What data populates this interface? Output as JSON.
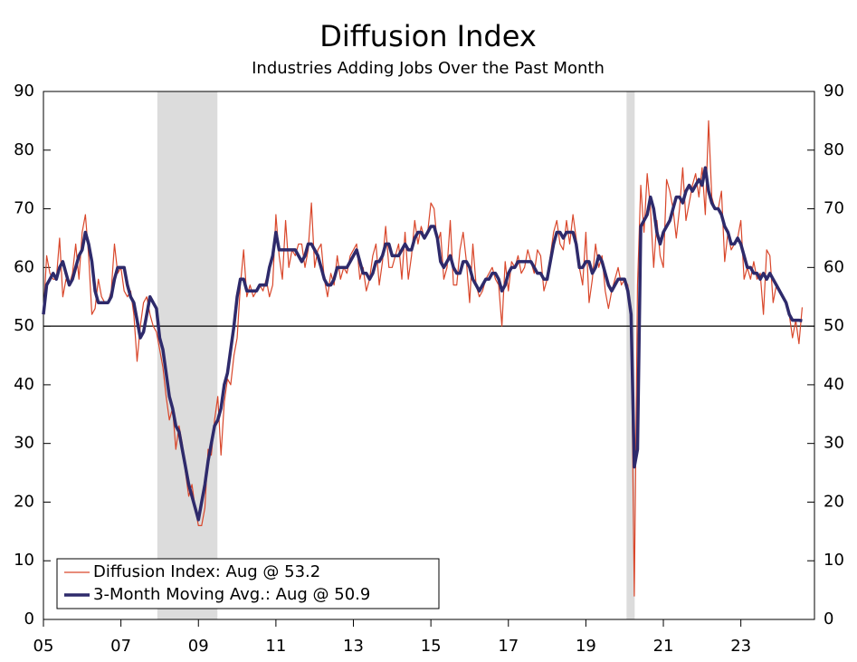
{
  "chart_data": {
    "type": "line",
    "title": "Diffusion Index",
    "subtitle": "Industries Adding Jobs Over the Past Month",
    "x": [
      2005,
      2005.083,
      2005.167,
      2005.25,
      2005.333,
      2005.417,
      2005.5,
      2005.583,
      2005.667,
      2005.75,
      2005.833,
      2005.917,
      2006,
      2006.083,
      2006.167,
      2006.25,
      2006.333,
      2006.417,
      2006.5,
      2006.583,
      2006.667,
      2006.75,
      2006.833,
      2006.917,
      2007,
      2007.083,
      2007.167,
      2007.25,
      2007.333,
      2007.417,
      2007.5,
      2007.583,
      2007.667,
      2007.75,
      2007.833,
      2007.917,
      2008,
      2008.083,
      2008.167,
      2008.25,
      2008.333,
      2008.417,
      2008.5,
      2008.583,
      2008.667,
      2008.75,
      2008.833,
      2008.917,
      2009,
      2009.083,
      2009.167,
      2009.25,
      2009.333,
      2009.417,
      2009.5,
      2009.583,
      2009.667,
      2009.75,
      2009.833,
      2009.917,
      2010,
      2010.083,
      2010.167,
      2010.25,
      2010.333,
      2010.417,
      2010.5,
      2010.583,
      2010.667,
      2010.75,
      2010.833,
      2010.917,
      2011,
      2011.083,
      2011.167,
      2011.25,
      2011.333,
      2011.417,
      2011.5,
      2011.583,
      2011.667,
      2011.75,
      2011.833,
      2011.917,
      2012,
      2012.083,
      2012.167,
      2012.25,
      2012.333,
      2012.417,
      2012.5,
      2012.583,
      2012.667,
      2012.75,
      2012.833,
      2012.917,
      2013,
      2013.083,
      2013.167,
      2013.25,
      2013.333,
      2013.417,
      2013.5,
      2013.583,
      2013.667,
      2013.75,
      2013.833,
      2013.917,
      2014,
      2014.083,
      2014.167,
      2014.25,
      2014.333,
      2014.417,
      2014.5,
      2014.583,
      2014.667,
      2014.75,
      2014.833,
      2014.917,
      2015,
      2015.083,
      2015.167,
      2015.25,
      2015.333,
      2015.417,
      2015.5,
      2015.583,
      2015.667,
      2015.75,
      2015.833,
      2015.917,
      2016,
      2016.083,
      2016.167,
      2016.25,
      2016.333,
      2016.417,
      2016.5,
      2016.583,
      2016.667,
      2016.75,
      2016.833,
      2016.917,
      2017,
      2017.083,
      2017.167,
      2017.25,
      2017.333,
      2017.417,
      2017.5,
      2017.583,
      2017.667,
      2017.75,
      2017.833,
      2017.917,
      2018,
      2018.083,
      2018.167,
      2018.25,
      2018.333,
      2018.417,
      2018.5,
      2018.583,
      2018.667,
      2018.75,
      2018.833,
      2018.917,
      2019,
      2019.083,
      2019.167,
      2019.25,
      2019.333,
      2019.417,
      2019.5,
      2019.583,
      2019.667,
      2019.75,
      2019.833,
      2019.917,
      2020,
      2020.083,
      2020.167,
      2020.25,
      2020.333,
      2020.417,
      2020.5,
      2020.583,
      2020.667,
      2020.75,
      2020.833,
      2020.917,
      2021,
      2021.083,
      2021.167,
      2021.25,
      2021.333,
      2021.417,
      2021.5,
      2021.583,
      2021.667,
      2021.75,
      2021.833,
      2021.917,
      2022,
      2022.083,
      2022.167,
      2022.25,
      2022.333,
      2022.417,
      2022.5,
      2022.583,
      2022.667,
      2022.75,
      2022.833,
      2022.917,
      2023,
      2023.083,
      2023.167,
      2023.25,
      2023.333,
      2023.417,
      2023.5,
      2023.583,
      2023.667,
      2023.75,
      2023.833,
      2023.917,
      2024,
      2024.083,
      2024.167,
      2024.25,
      2024.333,
      2024.417,
      2024.5,
      2024.583
    ],
    "series": [
      {
        "name": "Diffusion Index: Aug @ 53.2",
        "color": "#d9472b",
        "width": 1.2,
        "values": [
          52,
          62,
          59,
          58,
          58,
          65,
          55,
          58,
          57,
          59,
          64,
          58,
          66,
          69,
          62,
          52,
          53,
          58,
          55,
          54,
          54,
          56,
          64,
          59,
          60,
          56,
          55,
          56,
          52,
          44,
          50,
          54,
          55,
          52,
          50,
          49,
          46,
          43,
          38,
          34,
          36,
          29,
          33,
          30,
          25,
          21,
          23,
          19,
          16,
          16,
          19,
          29,
          28,
          34,
          38,
          28,
          37,
          41,
          40,
          45,
          48,
          57,
          63,
          55,
          57,
          55,
          56,
          57,
          56,
          58,
          55,
          57,
          69,
          62,
          58,
          68,
          60,
          63,
          62,
          64,
          64,
          60,
          63,
          71,
          60,
          63,
          64,
          58,
          55,
          59,
          57,
          62,
          58,
          60,
          59,
          62,
          63,
          64,
          58,
          60,
          56,
          58,
          62,
          64,
          57,
          61,
          67,
          60,
          60,
          62,
          64,
          58,
          66,
          58,
          62,
          68,
          64,
          67,
          65,
          66,
          71,
          70,
          64,
          66,
          58,
          60,
          68,
          57,
          57,
          63,
          66,
          61,
          54,
          64,
          57,
          55,
          56,
          58,
          59,
          60,
          58,
          57,
          50,
          61,
          56,
          61,
          60,
          62,
          59,
          60,
          63,
          61,
          59,
          63,
          62,
          56,
          58,
          62,
          66,
          68,
          64,
          63,
          68,
          64,
          69,
          65,
          60,
          57,
          66,
          54,
          58,
          64,
          60,
          62,
          56,
          53,
          56,
          58,
          60,
          57,
          58,
          57,
          52,
          4,
          57,
          74,
          66,
          76,
          70,
          60,
          68,
          62,
          60,
          75,
          73,
          70,
          65,
          70,
          77,
          68,
          71,
          74,
          76,
          72,
          77,
          69,
          85,
          72,
          70,
          70,
          73,
          61,
          66,
          63,
          64,
          65,
          68,
          58,
          60,
          58,
          61,
          58,
          59,
          52,
          63,
          62,
          54,
          57,
          56,
          55,
          54,
          52,
          48,
          51,
          47,
          53.2
        ]
      },
      {
        "name": "3-Month Moving Avg.: Aug @ 50.9",
        "color": "#2e2a6b",
        "width": 3.5,
        "values": [
          52,
          57,
          58,
          59,
          58,
          60,
          61,
          59,
          57,
          58,
          60,
          62,
          63,
          66,
          64,
          61,
          56,
          54,
          54,
          54,
          54,
          55,
          58,
          60,
          60,
          60,
          57,
          55,
          54,
          51,
          48,
          49,
          52,
          55,
          54,
          53,
          48,
          46,
          42,
          38,
          36,
          33,
          32,
          29,
          26,
          23,
          21,
          19,
          17,
          20,
          23,
          27,
          30,
          33,
          34,
          36,
          40,
          42,
          46,
          50,
          55,
          58,
          58,
          56,
          56,
          56,
          56,
          57,
          57,
          57,
          60,
          62,
          66,
          63,
          63,
          63,
          63,
          63,
          63,
          62,
          61,
          62,
          64,
          64,
          63,
          62,
          60,
          58,
          57,
          57,
          58,
          60,
          60,
          60,
          60,
          61,
          62,
          63,
          61,
          59,
          59,
          58,
          59,
          61,
          61,
          62,
          64,
          64,
          62,
          62,
          62,
          63,
          64,
          63,
          63,
          65,
          66,
          66,
          65,
          66,
          67,
          67,
          65,
          61,
          60,
          61,
          62,
          60,
          59,
          59,
          61,
          61,
          60,
          58,
          57,
          56,
          57,
          58,
          58,
          59,
          59,
          58,
          56,
          57,
          59,
          60,
          60,
          61,
          61,
          61,
          61,
          61,
          60,
          59,
          59,
          58,
          58,
          61,
          64,
          66,
          66,
          65,
          66,
          66,
          66,
          64,
          60,
          60,
          61,
          61,
          59,
          60,
          62,
          61,
          59,
          57,
          56,
          57,
          58,
          58,
          58,
          56,
          52,
          26,
          29,
          67,
          68,
          69,
          72,
          70,
          66,
          64,
          66,
          67,
          68,
          70,
          72,
          72,
          71,
          73,
          74,
          73,
          74,
          75,
          74,
          77,
          73,
          71,
          70,
          70,
          69,
          67,
          66,
          64,
          64,
          65,
          64,
          62,
          60,
          60,
          59,
          59,
          58,
          59,
          58,
          59,
          58,
          57,
          56,
          55,
          54,
          52,
          51,
          51,
          51,
          50.9
        ]
      }
    ],
    "xlim": [
      2005,
      2024.9
    ],
    "ylim": [
      0,
      90
    ],
    "xticks": [
      {
        "value": 2005,
        "label": "05"
      },
      {
        "value": 2007,
        "label": "07"
      },
      {
        "value": 2009,
        "label": "09"
      },
      {
        "value": 2011,
        "label": "11"
      },
      {
        "value": 2013,
        "label": "13"
      },
      {
        "value": 2015,
        "label": "15"
      },
      {
        "value": 2017,
        "label": "17"
      },
      {
        "value": 2019,
        "label": "19"
      },
      {
        "value": 2021,
        "label": "21"
      },
      {
        "value": 2023,
        "label": "23"
      }
    ],
    "yticks": [
      0,
      10,
      20,
      30,
      40,
      50,
      60,
      70,
      80,
      90
    ],
    "reference_line": 50,
    "shaded_regions": [
      [
        2007.94,
        2009.49
      ],
      [
        2020.05,
        2020.26
      ]
    ],
    "shade_color": "#dcdcdc",
    "legend": "lower left"
  }
}
